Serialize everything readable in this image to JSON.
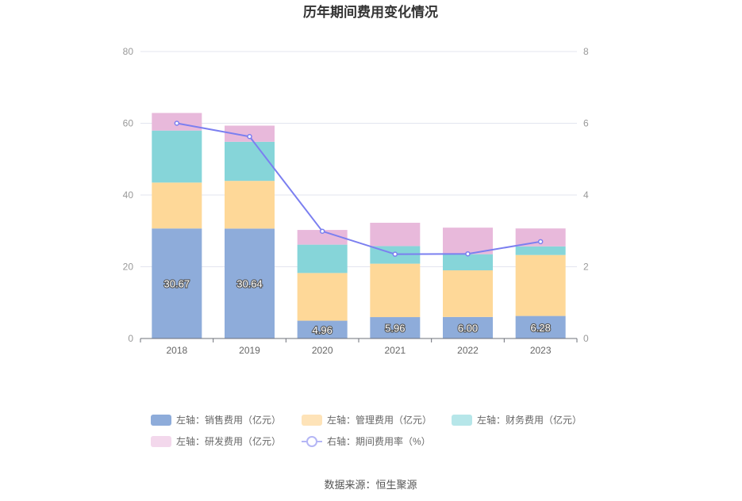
{
  "chart_data": {
    "type": "bar",
    "title": "历年期间费用变化情况",
    "categories": [
      "2018",
      "2019",
      "2020",
      "2021",
      "2022",
      "2023"
    ],
    "stacked": true,
    "series": [
      {
        "name": "左轴：销售费用（亿元）",
        "axis": "left",
        "color": "#8eacda",
        "values": [
          30.67,
          30.64,
          4.96,
          5.96,
          6.0,
          6.28
        ],
        "labels": [
          "30.67",
          "30.64",
          "4.96",
          "5.96",
          "6.00",
          "6.28"
        ]
      },
      {
        "name": "左轴：管理费用（亿元）",
        "axis": "left",
        "color": "#fed898",
        "values": [
          12.8,
          13.3,
          13.3,
          14.9,
          13.0,
          17.0
        ]
      },
      {
        "name": "左轴：财务费用（亿元）",
        "axis": "left",
        "color": "#86d5d9",
        "values": [
          14.5,
          10.9,
          7.9,
          4.9,
          4.5,
          2.4
        ]
      },
      {
        "name": "左轴：研发费用（亿元）",
        "axis": "left",
        "color": "#e8b9db",
        "values": [
          4.9,
          4.5,
          4.1,
          6.5,
          7.4,
          5.0
        ]
      }
    ],
    "line_series": {
      "name": "右轴：期间费用率（%）",
      "axis": "right",
      "color": "#7b7ff0",
      "values": [
        6.0,
        5.63,
        2.99,
        2.35,
        2.36,
        2.7
      ]
    },
    "left_axis": {
      "ylim": [
        0,
        80
      ],
      "ticks": [
        "0",
        "20",
        "40",
        "60",
        "80"
      ]
    },
    "right_axis": {
      "ylim": [
        0,
        8
      ],
      "ticks": [
        "0",
        "2",
        "4",
        "6",
        "8"
      ]
    },
    "legend_position": "bottom",
    "source": "数据来源：恒生聚源"
  }
}
